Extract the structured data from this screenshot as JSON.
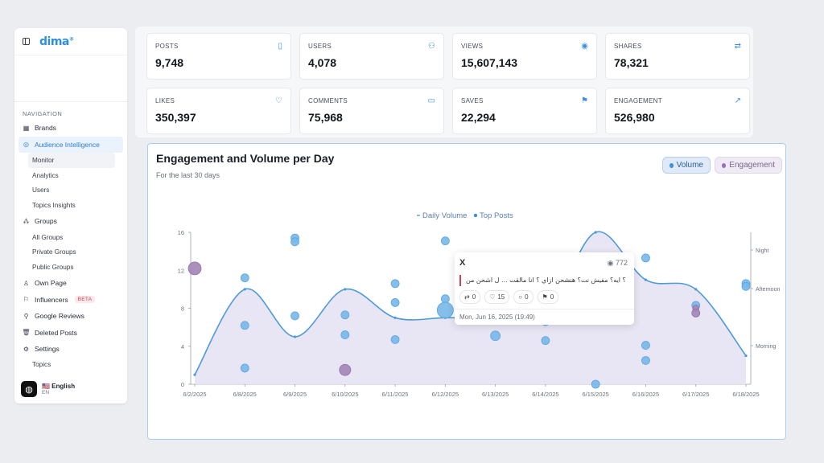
{
  "sidebar": {
    "logo": "dima",
    "logo_mark": "®",
    "nav_title": "NAVIGATION",
    "items": {
      "brands": "Brands",
      "audience": "Audience Intelligence",
      "monitor": "Monitor",
      "analytics": "Analytics",
      "users": "Users",
      "topics_insights": "Topics Insights",
      "groups": "Groups",
      "all_groups": "All Groups",
      "private_groups": "Private Groups",
      "public_groups": "Public Groups",
      "own_page": "Own Page",
      "influencers": "Influencers",
      "beta": "BETA",
      "google_reviews": "Google Reviews",
      "deleted_posts": "Deleted Posts",
      "settings": "Settings",
      "topics": "Topics"
    },
    "language": {
      "label": "🇺🇸 English",
      "code": "EN"
    }
  },
  "metrics": [
    {
      "label": "POSTS",
      "value": "9,748",
      "icon": "phone-icon"
    },
    {
      "label": "USERS",
      "value": "4,078",
      "icon": "users-icon"
    },
    {
      "label": "VIEWS",
      "value": "15,607,143",
      "icon": "eye-icon"
    },
    {
      "label": "SHARES",
      "value": "78,321",
      "icon": "repost-icon"
    },
    {
      "label": "LIKES",
      "value": "350,397",
      "icon": "heart-icon"
    },
    {
      "label": "COMMENTS",
      "value": "75,968",
      "icon": "comment-icon"
    },
    {
      "label": "SAVES",
      "value": "22,294",
      "icon": "bookmark-icon"
    },
    {
      "label": "ENGAGEMENT",
      "value": "526,980",
      "icon": "trend-icon"
    }
  ],
  "chart_panel": {
    "title": "Engagement and Volume per Day",
    "subtitle": "For the last 30 days",
    "toggle_volume": "Volume",
    "toggle_engagement": "Engagement",
    "accent": "#3d8fe0",
    "engagement_color": "#9b6bc8"
  },
  "chart_data": {
    "type": "area",
    "legend": [
      "Daily Volume",
      "Top Posts"
    ],
    "categories": [
      "6/2/2025",
      "6/8/2025",
      "6/9/2025",
      "6/10/2025",
      "6/11/2025",
      "6/12/2025",
      "6/13/2025",
      "6/14/2025",
      "6/15/2025",
      "6/16/2025",
      "6/17/2025",
      "6/18/2025"
    ],
    "ylim": [
      0,
      16
    ],
    "yticks": [
      0,
      4,
      8,
      12,
      16
    ],
    "right_ticks": [
      "Night",
      "Afternoon",
      "Morning"
    ],
    "volume": [
      {
        "x": 0,
        "y": 1
      },
      {
        "x": 1,
        "y": 10
      },
      {
        "x": 2,
        "y": 5
      },
      {
        "x": 3,
        "y": 10
      },
      {
        "x": 4,
        "y": 7
      },
      {
        "x": 5,
        "y": 7
      },
      {
        "x": 6,
        "y": 7
      },
      {
        "x": 7,
        "y": 7
      },
      {
        "x": 8,
        "y": 16
      },
      {
        "x": 9,
        "y": 11
      },
      {
        "x": 10,
        "y": 10
      },
      {
        "x": 11,
        "y": 3
      }
    ],
    "posts": [
      {
        "x": 0,
        "y": 12.2,
        "r": 8,
        "kind": "engagement"
      },
      {
        "x": 1,
        "y": 11.2,
        "r": 5,
        "kind": "volume"
      },
      {
        "x": 1,
        "y": 6.2,
        "r": 5,
        "kind": "volume"
      },
      {
        "x": 1,
        "y": 1.7,
        "r": 5,
        "kind": "volume"
      },
      {
        "x": 2,
        "y": 15.4,
        "r": 5,
        "kind": "volume"
      },
      {
        "x": 2,
        "y": 15,
        "r": 5,
        "kind": "volume"
      },
      {
        "x": 2,
        "y": 7.2,
        "r": 5,
        "kind": "volume"
      },
      {
        "x": 3,
        "y": 7.3,
        "r": 5,
        "kind": "volume"
      },
      {
        "x": 3,
        "y": 5.2,
        "r": 5,
        "kind": "volume"
      },
      {
        "x": 3,
        "y": 1.5,
        "r": 7,
        "kind": "engagement"
      },
      {
        "x": 4,
        "y": 10.6,
        "r": 5,
        "kind": "volume"
      },
      {
        "x": 4,
        "y": 8.6,
        "r": 5,
        "kind": "volume"
      },
      {
        "x": 4,
        "y": 4.7,
        "r": 5,
        "kind": "volume"
      },
      {
        "x": 5,
        "y": 15.1,
        "r": 5,
        "kind": "volume"
      },
      {
        "x": 5,
        "y": 9,
        "r": 5,
        "kind": "volume"
      },
      {
        "x": 5,
        "y": 7.8,
        "r": 10,
        "kind": "volume"
      },
      {
        "x": 6,
        "y": 5.1,
        "r": 6,
        "kind": "volume"
      },
      {
        "x": 7,
        "y": 6.6,
        "r": 5,
        "kind": "volume"
      },
      {
        "x": 7,
        "y": 4.6,
        "r": 5,
        "kind": "volume"
      },
      {
        "x": 8,
        "y": 0,
        "r": 5,
        "kind": "volume"
      },
      {
        "x": 9,
        "y": 13.3,
        "r": 5,
        "kind": "volume"
      },
      {
        "x": 9,
        "y": 4.1,
        "r": 5,
        "kind": "volume"
      },
      {
        "x": 9,
        "y": 2.5,
        "r": 5,
        "kind": "volume"
      },
      {
        "x": 10,
        "y": 8.3,
        "r": 5,
        "kind": "volume"
      },
      {
        "x": 10,
        "y": 8,
        "r": 4,
        "kind": "engagement"
      },
      {
        "x": 10,
        "y": 7.5,
        "r": 5,
        "kind": "engagement"
      },
      {
        "x": 11,
        "y": 10.6,
        "r": 5,
        "kind": "volume"
      },
      {
        "x": 11,
        "y": 10.3,
        "r": 5,
        "kind": "volume"
      }
    ]
  },
  "tooltip": {
    "platform": "X",
    "views": "772",
    "text": "؟ ايه؟ مفيش نت؟ هنشحن ازاي ؟ انا مالقت ... ل اشحن من",
    "reposts": "0",
    "likes": "15",
    "comments": "0",
    "saves": "0",
    "date": "Mon, Jun 16, 2025 (19:49)"
  }
}
